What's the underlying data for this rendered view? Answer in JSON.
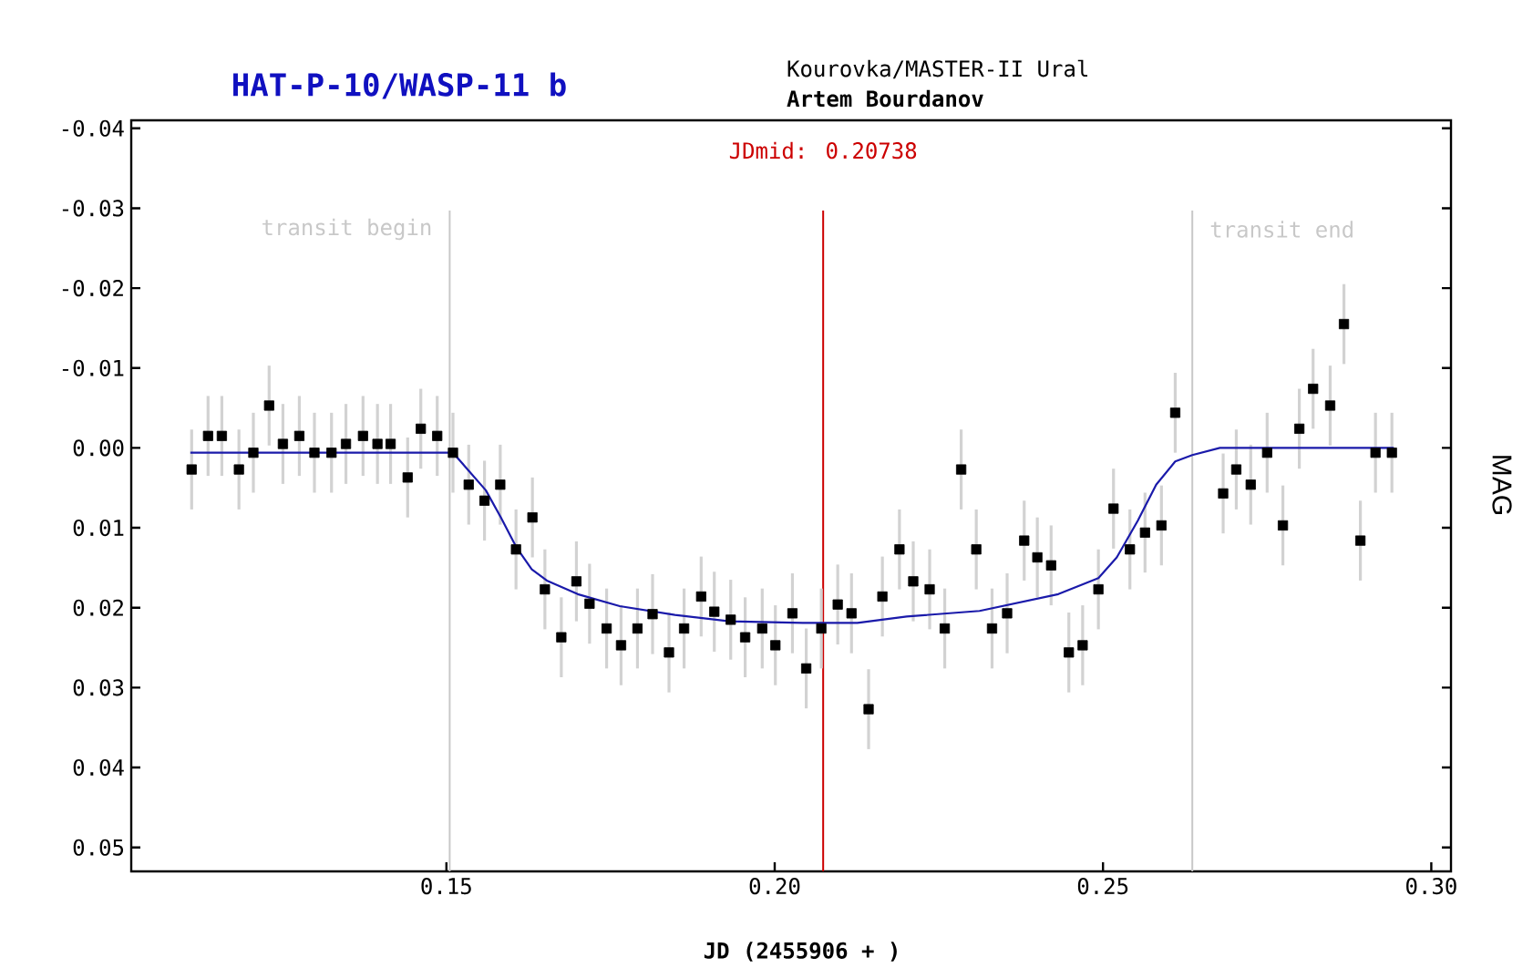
{
  "chart_data": {
    "type": "scatter",
    "title": "HAT-P-10/WASP-11 b",
    "subtitle": "Kourovka/MASTER-II Ural",
    "annotations": [
      "Artem Bourdanov"
    ],
    "xlabel": "JD (2455906 + )",
    "ylabel": "MAG",
    "xlim": [
      0.102,
      0.303
    ],
    "ylim": [
      0.053,
      -0.041
    ],
    "xticks": [
      {
        "value": 0.15,
        "label": "0.15"
      },
      {
        "value": 0.2,
        "label": "0.20"
      },
      {
        "value": 0.25,
        "label": "0.25"
      },
      {
        "value": 0.3,
        "label": "0.30"
      }
    ],
    "yticks": [
      {
        "value": -0.04,
        "label": "-0.04"
      },
      {
        "value": -0.03,
        "label": "-0.03"
      },
      {
        "value": -0.02,
        "label": "-0.02"
      },
      {
        "value": -0.01,
        "label": "-0.01"
      },
      {
        "value": 0,
        "label": "0.00"
      },
      {
        "value": 0.01,
        "label": "0.01"
      },
      {
        "value": 0.02,
        "label": "0.02"
      },
      {
        "value": 0.03,
        "label": "0.03"
      },
      {
        "value": 0.04,
        "label": "0.04"
      },
      {
        "value": 0.05,
        "label": "0.05"
      }
    ],
    "ref_lines": [
      {
        "axis": "x",
        "value": 0.1505,
        "label": "transit begin",
        "color": "#c8c8c8"
      },
      {
        "axis": "x",
        "value": 0.20738,
        "label": "JDmid: 0.20738",
        "color": "#cc0000"
      },
      {
        "axis": "x",
        "value": 0.2636,
        "label": "transit end",
        "color": "#c8c8c8"
      }
    ],
    "series": [
      {
        "color": "#000000",
        "marker": "square",
        "x": [
          0.1112,
          0.1137,
          0.1158,
          0.1184,
          0.1206,
          0.123,
          0.1251,
          0.1276,
          0.1299,
          0.1325,
          0.1347,
          0.1373,
          0.1395,
          0.1415,
          0.1441,
          0.1461,
          0.1486,
          0.151,
          0.1534,
          0.1558,
          0.1582,
          0.1606,
          0.1631,
          0.165,
          0.1675,
          0.1698,
          0.1718,
          0.1744,
          0.1766,
          0.1791,
          0.1814,
          0.1839,
          0.1862,
          0.1888,
          0.1908,
          0.1933,
          0.1955,
          0.1981,
          0.2001,
          0.2027,
          0.2048,
          0.2071,
          0.2096,
          0.2117,
          0.2143,
          0.2164,
          0.219,
          0.2211,
          0.2236,
          0.2259,
          0.2284,
          0.2307,
          0.2331,
          0.2354,
          0.238,
          0.24,
          0.2421,
          0.2448,
          0.2469,
          0.2493,
          0.2516,
          0.2541,
          0.2564,
          0.2589,
          0.261,
          0.2683,
          0.2703,
          0.2725,
          0.275,
          0.2774,
          0.2799,
          0.282,
          0.2846,
          0.2867,
          0.2892,
          0.2915,
          0.294
        ],
        "values": [
          0.0027,
          -0.0015,
          -0.0015,
          0.0027,
          0.0006,
          -0.0053,
          -0.0005,
          -0.0015,
          0.0006,
          0.0006,
          -0.0005,
          -0.0015,
          -0.0005,
          -0.0005,
          0.0037,
          -0.0024,
          -0.0015,
          0.0006,
          0.0046,
          0.0066,
          0.0046,
          0.0127,
          0.0087,
          0.0177,
          0.0237,
          0.0167,
          0.0195,
          0.0226,
          0.0247,
          0.0226,
          0.0208,
          0.0256,
          0.0226,
          0.0186,
          0.0205,
          0.0215,
          0.0237,
          0.0226,
          0.0247,
          0.0207,
          0.0276,
          0.0226,
          0.0196,
          0.0207,
          0.0327,
          0.0186,
          0.0127,
          0.0167,
          0.0177,
          0.0226,
          0.0027,
          0.0127,
          0.0226,
          0.0207,
          0.0116,
          0.0137,
          0.0147,
          0.0256,
          0.0247,
          0.0177,
          0.0076,
          0.0127,
          0.0106,
          0.0097,
          -0.0044,
          0.0057,
          0.0027,
          0.0046,
          0.0006,
          0.0097,
          -0.0024,
          -0.0074,
          -0.0053,
          -0.0155,
          0.0116,
          0.0006,
          0.0006
        ],
        "errors": [
          0.005,
          0.005,
          0.005,
          0.005,
          0.005,
          0.005,
          0.005,
          0.005,
          0.005,
          0.005,
          0.005,
          0.005,
          0.005,
          0.005,
          0.005,
          0.005,
          0.005,
          0.005,
          0.005,
          0.005,
          0.005,
          0.005,
          0.005,
          0.005,
          0.005,
          0.005,
          0.005,
          0.005,
          0.005,
          0.005,
          0.005,
          0.005,
          0.005,
          0.005,
          0.005,
          0.005,
          0.005,
          0.005,
          0.005,
          0.005,
          0.005,
          0.005,
          0.005,
          0.005,
          0.005,
          0.005,
          0.005,
          0.005,
          0.005,
          0.005,
          0.005,
          0.005,
          0.005,
          0.005,
          0.005,
          0.005,
          0.005,
          0.005,
          0.005,
          0.005,
          0.005,
          0.005,
          0.005,
          0.005,
          0.005,
          0.005,
          0.005,
          0.005,
          0.005,
          0.005,
          0.005,
          0.005,
          0.005,
          0.005,
          0.005,
          0.005,
          0.005
        ]
      },
      {
        "type": "line",
        "color": "#1a1aaa",
        "marker": "none",
        "line_style": "solid",
        "x": [
          0.111,
          0.151,
          0.156,
          0.1583,
          0.1607,
          0.163,
          0.1653,
          0.17,
          0.1764,
          0.1848,
          0.1931,
          0.2043,
          0.2126,
          0.2201,
          0.2312,
          0.2432,
          0.2493,
          0.2521,
          0.2553,
          0.2581,
          0.261,
          0.2636,
          0.2678,
          0.2943
        ],
        "values": [
          0.0006,
          0.0006,
          0.0053,
          0.0087,
          0.0125,
          0.0152,
          0.0166,
          0.0183,
          0.0198,
          0.0209,
          0.0217,
          0.0219,
          0.0219,
          0.0211,
          0.0204,
          0.0183,
          0.0163,
          0.0137,
          0.0091,
          0.0046,
          0.0017,
          0.0009,
          0.0,
          0.0
        ]
      }
    ]
  }
}
